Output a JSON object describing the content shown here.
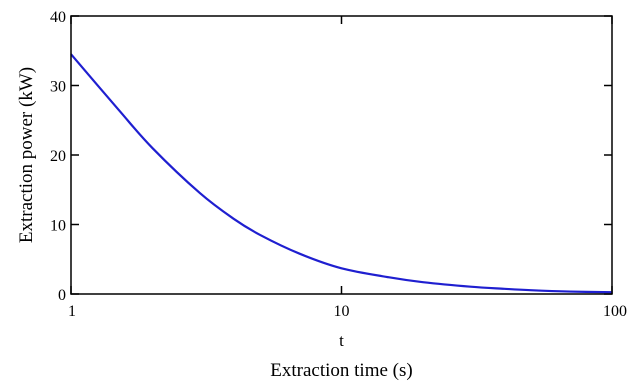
{
  "chart_data": {
    "type": "line",
    "x_scale": "log",
    "xlim": [
      1,
      100
    ],
    "ylim": [
      0,
      40
    ],
    "x_ticks": [
      1,
      10,
      100
    ],
    "x_tick_labels": [
      "1",
      "10",
      "100"
    ],
    "y_ticks": [
      0,
      10,
      20,
      30,
      40
    ],
    "y_tick_labels": [
      "0",
      "10",
      "20",
      "30",
      "40"
    ],
    "x_variable": "t",
    "xlabel": "Extraction time (s)",
    "ylabel": "Extraction power (kW)",
    "grid": false,
    "series": [
      {
        "color": "#1f1fd0",
        "x": [
          1,
          1.5,
          2,
          3,
          4,
          5,
          7,
          10,
          15,
          20,
          30,
          40,
          50,
          70,
          100
        ],
        "y": [
          34.5,
          26.5,
          21.0,
          14.5,
          10.8,
          8.5,
          5.8,
          3.7,
          2.4,
          1.7,
          1.05,
          0.75,
          0.55,
          0.35,
          0.25
        ]
      }
    ]
  }
}
